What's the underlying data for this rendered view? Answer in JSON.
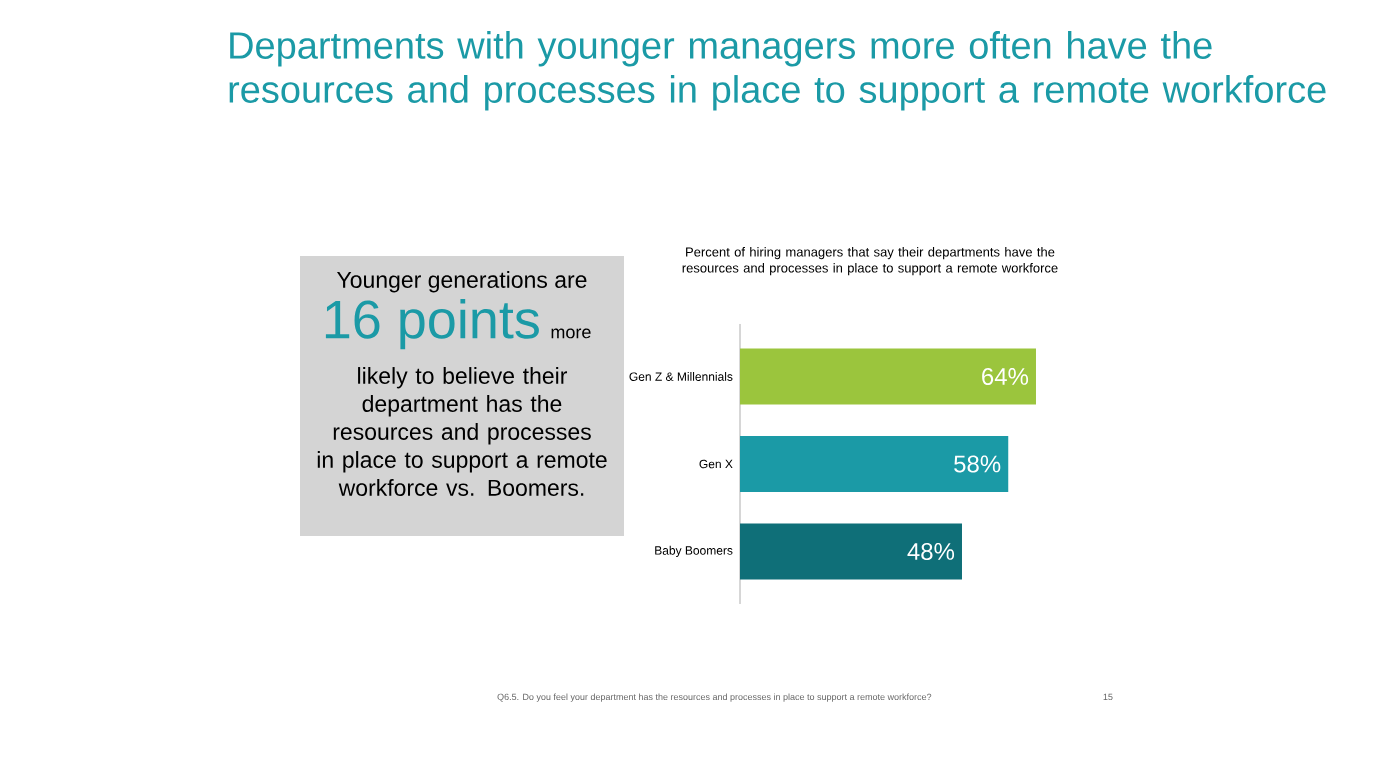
{
  "chart_data": {
    "type": "bar",
    "orientation": "horizontal",
    "relative": false,
    "title": "Departments with younger managers more often have the resources and processes in place to support a remote workforce",
    "subtitle": "Percent of hiring managers that say their departments have the resources and processes in place to support a remote workforce",
    "categories": [
      "Gen Z & Millennials",
      "Gen X",
      "Baby Boomers"
    ],
    "values": [
      64,
      58,
      48
    ],
    "colors": [
      "#9bc53d",
      "#1b9aa6",
      "#0f6f78"
    ],
    "value_labels": [
      "64%",
      "58%",
      "48%"
    ],
    "annotations": [
      "Younger generations are",
      "16 points",
      "more",
      "likely to believe their department has the resources and processes in place to support a remote workforce vs. Boomers.",
      "Q6.5. Do you feel your department has the resources and processes in place to support a remote workforce?",
      "15"
    ]
  }
}
